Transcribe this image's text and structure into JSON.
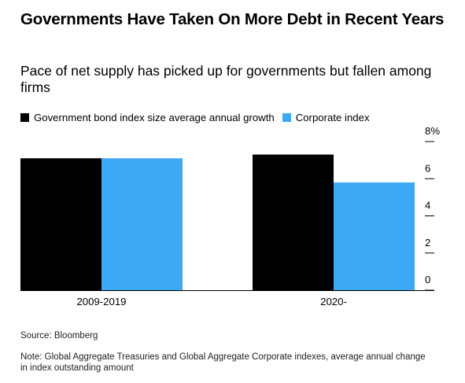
{
  "title": "Governments Have Taken On More Debt in Recent Years",
  "subtitle": "Pace of net supply has picked up for governments but fallen among firms",
  "source": "Source: Bloomberg",
  "note": "Note: Global Aggregate Treasuries and Global Aggregate Corporate indexes, average annual change in index outstanding amount",
  "chart_data": {
    "type": "bar",
    "categories": [
      "2009-2019",
      "2020-"
    ],
    "series": [
      {
        "name": "Government bond index size average annual growth",
        "color": "#000000",
        "values": [
          7.1,
          7.3
        ]
      },
      {
        "name": "Corporate index",
        "color": "#3da9f5",
        "values": [
          7.1,
          5.8
        ]
      }
    ],
    "ylim": [
      0,
      8
    ],
    "yticks": [
      0,
      2,
      4,
      6,
      8
    ],
    "ytick_labels": [
      "0",
      "2",
      "4",
      "6",
      "8%"
    ],
    "axis_side": "right",
    "legend_position": "top-left",
    "grid": false
  }
}
